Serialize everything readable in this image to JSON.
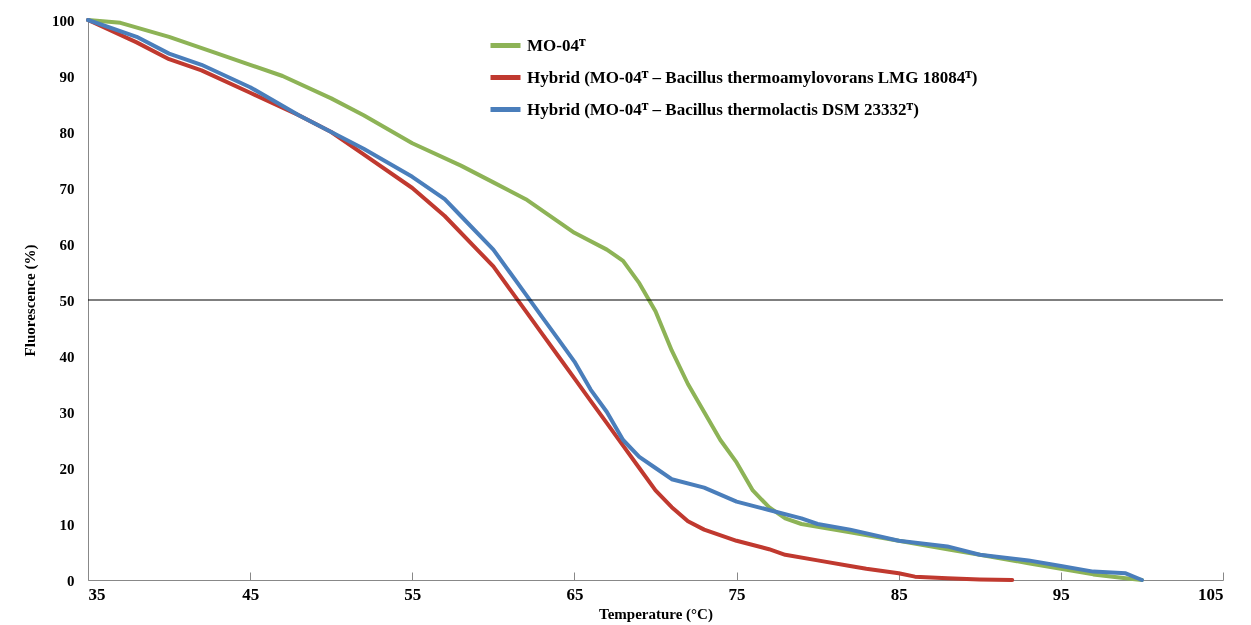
{
  "chart_data": {
    "type": "line",
    "xlabel": "Temperature (°C)",
    "ylabel": "Fluorescence (%)",
    "xlim": [
      35,
      105
    ],
    "xticks": [
      35,
      45,
      55,
      65,
      75,
      85,
      95,
      105
    ],
    "ylim": [
      0,
      100
    ],
    "yticks": [
      0,
      10,
      20,
      30,
      40,
      50,
      60,
      70,
      80,
      90,
      100
    ],
    "grid": false,
    "legend": "top",
    "marker": "none",
    "line_style": "solid",
    "ref_lines": [
      {
        "axis": "y",
        "value": 50,
        "color": "#000000"
      }
    ],
    "series": [
      {
        "name": "MO-04ᵀ",
        "color": "#8db356",
        "x": [
          35,
          37,
          40,
          43,
          45,
          47,
          50,
          52,
          55,
          58,
          60,
          62,
          64,
          65,
          67,
          68,
          69,
          70,
          71,
          72,
          73,
          74,
          75,
          76,
          77,
          78,
          79,
          80,
          82,
          85,
          88,
          90,
          93,
          95,
          97,
          99,
          100
        ],
        "values": [
          100,
          99.5,
          97,
          94,
          92,
          90,
          86,
          83,
          78,
          74,
          71,
          68,
          64,
          62,
          59,
          57,
          53,
          48,
          41,
          35,
          30,
          25,
          21,
          16,
          13,
          11,
          10,
          9.5,
          8.5,
          7,
          5.5,
          4.5,
          3,
          2,
          1,
          0.3,
          0
        ]
      },
      {
        "name": "Hybrid  (MO-04ᵀ – Bacillus thermoamylovorans LMG 18084ᵀ)",
        "color": "#c0392f",
        "x": [
          35,
          38,
          40,
          42,
          45,
          48,
          50,
          52,
          55,
          57,
          59,
          60,
          61,
          62,
          63,
          64,
          65,
          66,
          67,
          68,
          69,
          70,
          71,
          72,
          73,
          75,
          77,
          78,
          80,
          82,
          83,
          85,
          86,
          88,
          90,
          92
        ],
        "values": [
          100,
          96,
          93,
          91,
          87,
          83,
          80,
          76,
          70,
          65,
          59,
          56,
          52,
          48,
          44,
          40,
          36,
          32,
          28,
          24,
          20,
          16,
          13,
          10.5,
          9,
          7,
          5.5,
          4.5,
          3.5,
          2.5,
          2,
          1.2,
          0.6,
          0.3,
          0.1,
          0
        ]
      },
      {
        "name": "Hybrid  (MO-04ᵀ – Bacillus thermolactis DSM 23332ᵀ)",
        "color": "#4a7ebb",
        "x": [
          35,
          38,
          40,
          42,
          45,
          48,
          50,
          52,
          55,
          57,
          58,
          60,
          61,
          62,
          63,
          64,
          65,
          66,
          67,
          68,
          69,
          70,
          71,
          73,
          75,
          77,
          79,
          80,
          82,
          85,
          88,
          90,
          93,
          95,
          97,
          99,
          100
        ],
        "values": [
          100,
          97,
          94,
          92,
          88,
          83,
          80,
          77,
          72,
          68,
          65,
          59,
          55,
          51,
          47,
          43,
          39,
          34,
          30,
          25,
          22,
          20,
          18,
          16.5,
          14,
          12.5,
          11,
          10,
          9,
          7,
          6,
          4.5,
          3.5,
          2.5,
          1.5,
          1.2,
          0
        ]
      }
    ]
  }
}
